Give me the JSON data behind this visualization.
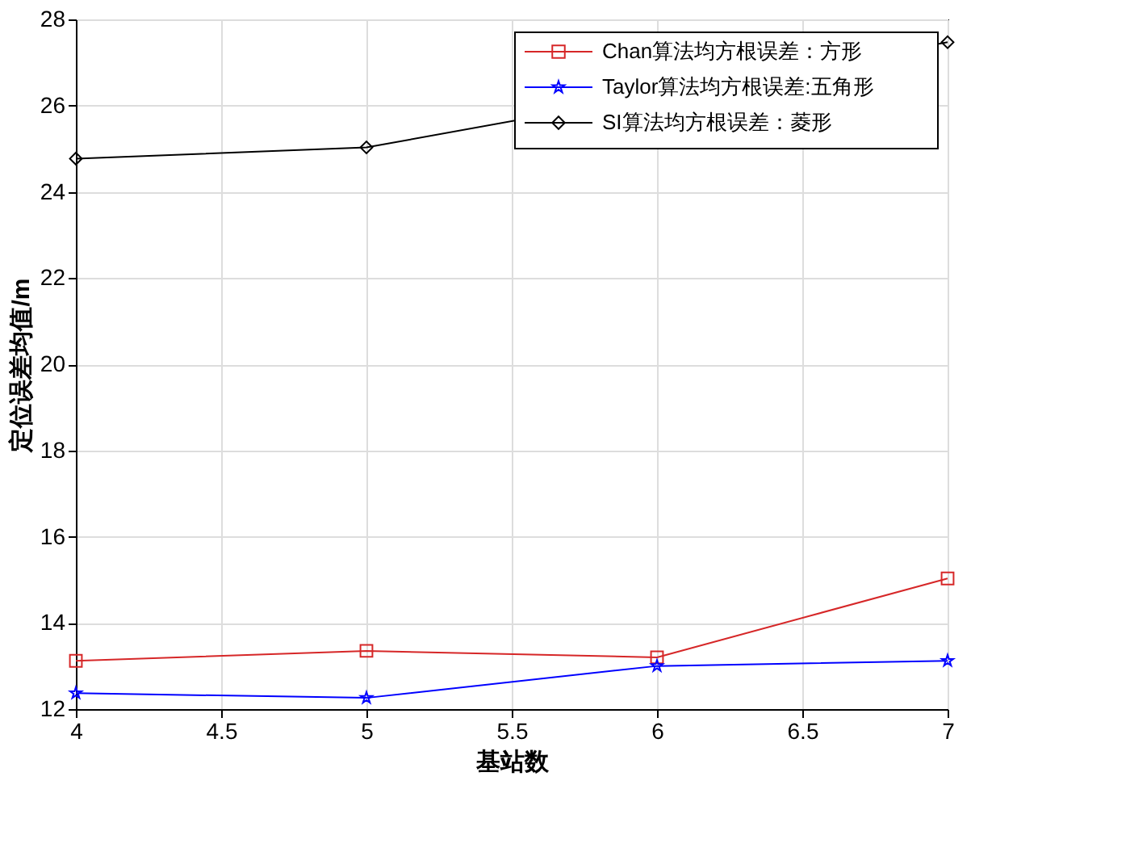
{
  "chart_data": {
    "type": "line",
    "xlabel": "基站数",
    "ylabel": "定位误差均值/m",
    "x": [
      4,
      5,
      6,
      7
    ],
    "series": [
      {
        "name": "Chan算法均方根误差：方形",
        "color": "#d62728",
        "marker": "square",
        "values": [
          13.12,
          13.35,
          13.2,
          15.03
        ]
      },
      {
        "name": "Taylor算法均方根误差:五角形",
        "color": "#0000ff",
        "marker": "star",
        "values": [
          12.37,
          12.26,
          13.0,
          13.12
        ]
      },
      {
        "name": "SI算法均方根误差：菱形",
        "color": "#000000",
        "marker": "diamond",
        "values": [
          24.77,
          25.03,
          null,
          27.47
        ]
      }
    ],
    "xlim": [
      4,
      7
    ],
    "xticks": [
      4,
      4.5,
      5,
      5.5,
      6,
      6.5,
      7
    ],
    "ylim": [
      12,
      28
    ],
    "yticks": [
      12,
      14,
      16,
      18,
      20,
      22,
      24,
      26,
      28
    ],
    "grid": true,
    "legend": "top right",
    "line_style": "solid"
  }
}
